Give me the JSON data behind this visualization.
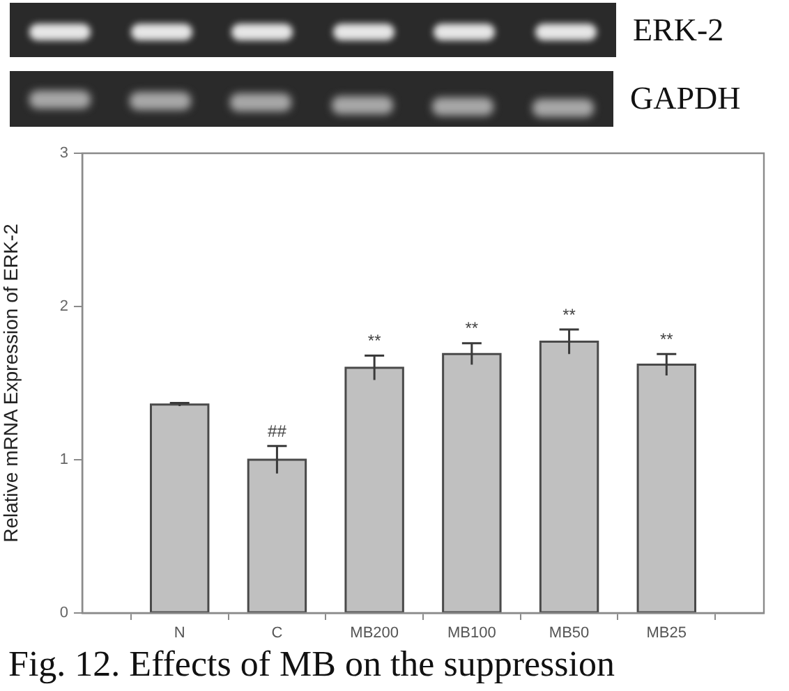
{
  "chart_data": {
    "type": "bar",
    "ylabel": "Relative mRNA Expression of ERK-2",
    "categories": [
      "N",
      "C",
      "MB200",
      "MB100",
      "MB50",
      "MB25"
    ],
    "values": [
      1.36,
      1.0,
      1.6,
      1.69,
      1.77,
      1.62
    ],
    "errors": [
      0.01,
      0.09,
      0.08,
      0.07,
      0.08,
      0.07
    ],
    "color": "#c0c0c0",
    "ylim": [
      0,
      3
    ],
    "yticks": [
      0,
      1,
      2,
      3
    ],
    "annotations": [
      "ERK-2",
      "GAPDH",
      {
        "text": "##",
        "x": "C",
        "y": 1.09
      },
      {
        "text": "**",
        "x": "MB200",
        "y": 1.68
      },
      {
        "text": "**",
        "x": "MB100",
        "y": 1.76
      },
      {
        "text": "**",
        "x": "MB50",
        "y": 1.85
      },
      {
        "text": "**",
        "x": "MB25",
        "y": 1.69
      },
      "Fig. 12. Effects of MB on the suppression"
    ]
  }
}
